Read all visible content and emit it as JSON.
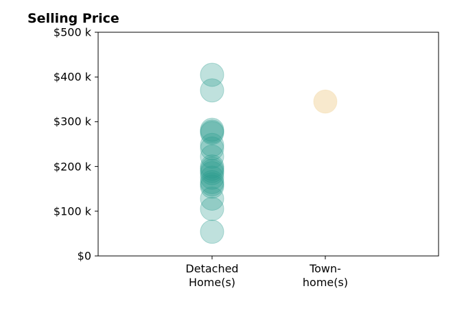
{
  "chart_data": {
    "type": "scatter",
    "title": "Selling Price",
    "categories": [
      [
        "Detached",
        "Home(s)"
      ],
      [
        "Town-",
        "home(s)"
      ]
    ],
    "ylim": [
      0,
      500000
    ],
    "yticks": [
      0,
      100000,
      200000,
      300000,
      400000,
      500000
    ],
    "ytick_labels": [
      "$0",
      "$100 k",
      "$200 k",
      "$300 k",
      "$400 k",
      "$500 k"
    ],
    "grid": false,
    "series": [
      {
        "category": 0,
        "color": "#2a9d8f",
        "values": [
          405000,
          370000,
          282000,
          278000,
          275000,
          248000,
          240000,
          222000,
          200000,
          195000,
          190000,
          185000,
          175000,
          165000,
          160000,
          155000,
          128000,
          105000,
          54000
        ]
      },
      {
        "category": 1,
        "color": "#f2d49b",
        "values": [
          345000
        ]
      }
    ]
  }
}
